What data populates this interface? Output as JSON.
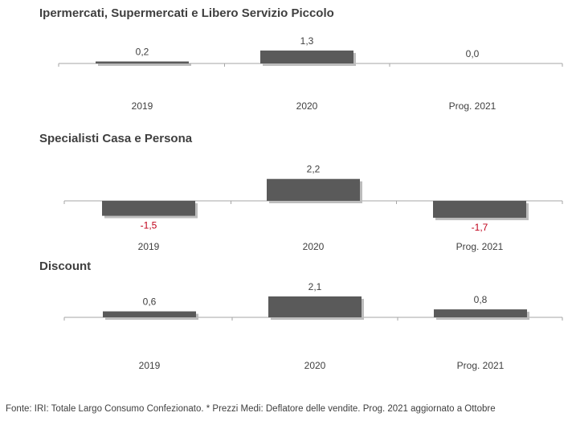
{
  "chart_data": [
    {
      "type": "bar",
      "title": "Ipermercati, Supermercati e Libero Servizio Piccolo",
      "categories": [
        "2019",
        "2020",
        "Prog. 2021"
      ],
      "values": [
        0.2,
        1.3,
        0.0
      ],
      "value_labels": [
        "0,2",
        "1,3",
        "0,0"
      ],
      "ylim": [
        -2,
        2.5
      ]
    },
    {
      "type": "bar",
      "title": "Specialisti Casa e Persona",
      "categories": [
        "2019",
        "2020",
        "Prog. 2021"
      ],
      "values": [
        -1.5,
        2.2,
        -1.7
      ],
      "value_labels": [
        "-1,5",
        "2,2",
        "-1,7"
      ],
      "ylim": [
        -2,
        2.5
      ]
    },
    {
      "type": "bar",
      "title": "Discount",
      "categories": [
        "2019",
        "2020",
        "Prog. 2021"
      ],
      "values": [
        0.6,
        2.1,
        0.8
      ],
      "value_labels": [
        "0,6",
        "2,1",
        "0,8"
      ],
      "ylim": [
        -2,
        2.5
      ]
    }
  ],
  "colors": {
    "bar": "#5a5a5a",
    "bar_shadow": "#bdbdbd",
    "positive_label": "#404040",
    "negative_label": "#c0001a",
    "axis": "#a6a6a6"
  },
  "footer": "Fonte: IRI: Totale Largo Consumo Confezionato.  * Prezzi Medi: Deflatore delle vendite.  Prog. 2021 aggiornato a Ottobre"
}
